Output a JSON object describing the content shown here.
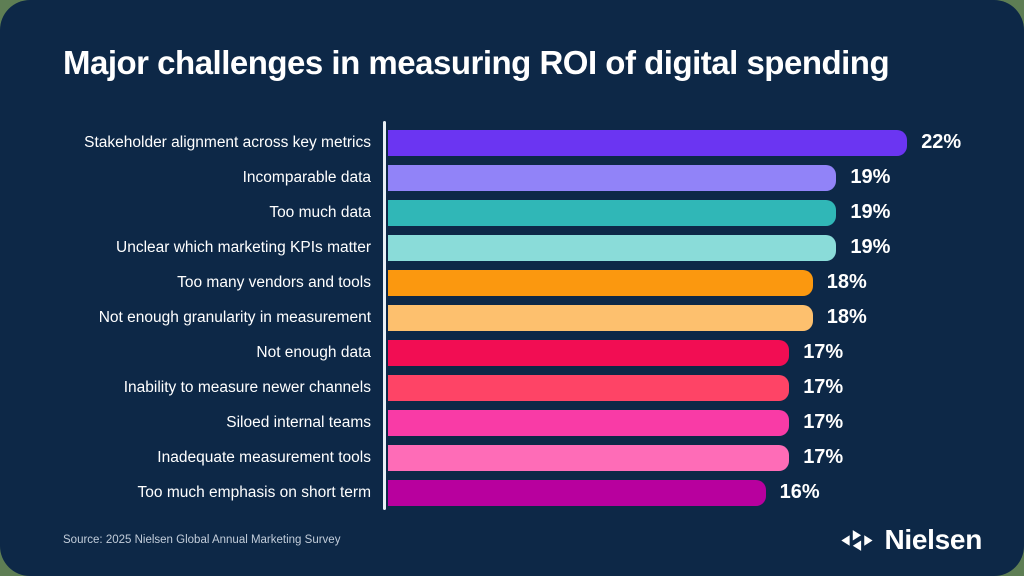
{
  "title": "Major challenges in measuring ROI of digital spending",
  "source": "Source: 2025 Nielsen Global Annual Marketing Survey",
  "logo": {
    "brand": "Nielsen"
  },
  "colors": {
    "card_background": "#0D2847",
    "page_corner_background": "#5E7E54",
    "axis_line": "#EAF0F6",
    "title_text": "#FFFFFF",
    "label_text": "#FFFFFF",
    "value_text": "#FFFFFF",
    "source_text": "#C2CDDA"
  },
  "chart_data": {
    "type": "bar",
    "orientation": "horizontal",
    "title": "Major challenges in measuring ROI of digital spending",
    "unit": "%",
    "xlim": [
      0,
      22
    ],
    "grid": false,
    "legend": false,
    "categories": [
      "Stakeholder alignment across key metrics",
      "Incomparable data",
      "Too much data",
      "Unclear which marketing KPIs matter",
      "Too many vendors and tools",
      "Not enough granularity in measurement",
      "Not enough data",
      "Inability to measure newer channels",
      "Siloed internal teams",
      "Inadequate measurement tools",
      "Too much emphasis on short term"
    ],
    "values": [
      22,
      19,
      19,
      19,
      18,
      18,
      17,
      17,
      17,
      17,
      16
    ],
    "value_labels": [
      "22%",
      "19%",
      "19%",
      "19%",
      "18%",
      "18%",
      "17%",
      "17%",
      "17%",
      "17%",
      "16%"
    ],
    "bar_colors": [
      "#6B35F2",
      "#9183F8",
      "#30B7B7",
      "#8ADCD9",
      "#FB980F",
      "#FDC06E",
      "#F20D53",
      "#FE4466",
      "#F93BA6",
      "#FE6CB7",
      "#B8009E"
    ]
  }
}
